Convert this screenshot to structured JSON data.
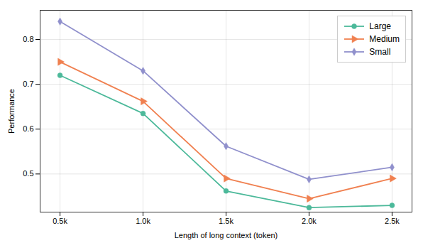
{
  "chart_data": {
    "type": "line",
    "x": [
      0.5,
      1.0,
      1.5,
      2.0,
      2.5
    ],
    "xlabel": "Length of long context (token)",
    "ylabel": "Performance",
    "series": [
      {
        "name": "Large",
        "color": "#4cb99a",
        "marker": "circle",
        "values": [
          0.72,
          0.635,
          0.462,
          0.425,
          0.43
        ]
      },
      {
        "name": "Medium",
        "color": "#f08050",
        "marker": "triangle-right",
        "values": [
          0.75,
          0.662,
          0.49,
          0.445,
          0.49
        ]
      },
      {
        "name": "Small",
        "color": "#9090cc",
        "marker": "diamond",
        "values": [
          0.84,
          0.73,
          0.562,
          0.488,
          0.515
        ]
      }
    ],
    "xlim": [
      0.38,
      2.62
    ],
    "ylim": [
      0.415,
      0.865
    ],
    "xticks": [
      {
        "value": 0.5,
        "label": "0.5k"
      },
      {
        "value": 1.0,
        "label": "1.0k"
      },
      {
        "value": 1.5,
        "label": "1.5k"
      },
      {
        "value": 2.0,
        "label": "2.0k"
      },
      {
        "value": 2.5,
        "label": "2.5k"
      }
    ],
    "yticks": [
      0.5,
      0.6,
      0.7,
      0.8
    ],
    "grid": true,
    "legend": "upper right"
  }
}
